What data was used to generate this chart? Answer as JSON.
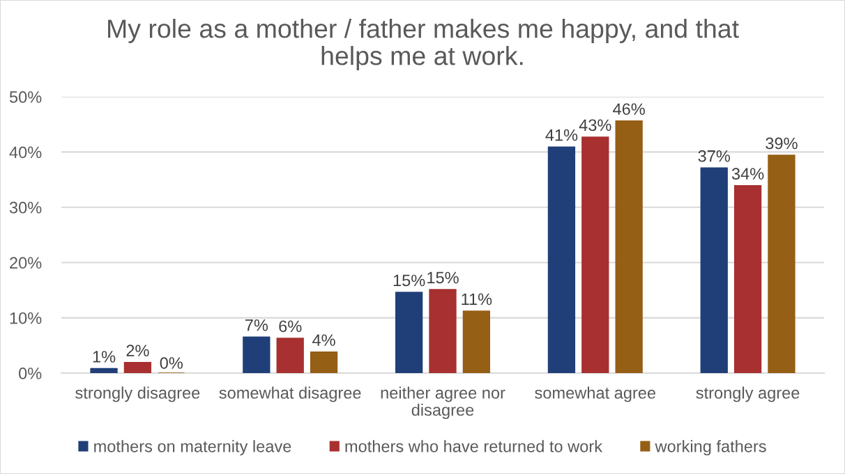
{
  "chart_data": {
    "type": "bar",
    "title": "My role as a mother / father makes me happy, and that\nhelps me at work.",
    "categories": [
      "strongly disagree",
      "somewhat disagree",
      "neither agree nor\ndisagree",
      "somewhat agree",
      "strongly agree"
    ],
    "series": [
      {
        "name": "mothers on maternity leave",
        "color": "#203f79",
        "values": [
          0.8,
          6.5,
          14.6,
          40.9,
          37.1
        ],
        "value_labels": [
          "1%",
          "7%",
          "15%",
          "41%",
          "37%"
        ]
      },
      {
        "name": "mothers who have returned to work",
        "color": "#a83030",
        "values": [
          1.9,
          6.3,
          15.1,
          42.7,
          33.9
        ],
        "value_labels": [
          "2%",
          "6%",
          "15%",
          "43%",
          "34%"
        ]
      },
      {
        "name": "working fathers",
        "color": "#955f15",
        "values": [
          0,
          3.8,
          11.2,
          45.6,
          39.4
        ],
        "value_labels": [
          "0%",
          "4%",
          "11%",
          "46%",
          "39%"
        ]
      }
    ],
    "ylim": [
      0,
      50
    ],
    "yticks": [
      {
        "value": 0,
        "label": "0%"
      },
      {
        "value": 10,
        "label": "10%"
      },
      {
        "value": 20,
        "label": "20%"
      },
      {
        "value": 30,
        "label": "30%"
      },
      {
        "value": 40,
        "label": "40%"
      },
      {
        "value": 50,
        "label": "50%"
      }
    ],
    "grid": "y",
    "legend": "bottom"
  }
}
